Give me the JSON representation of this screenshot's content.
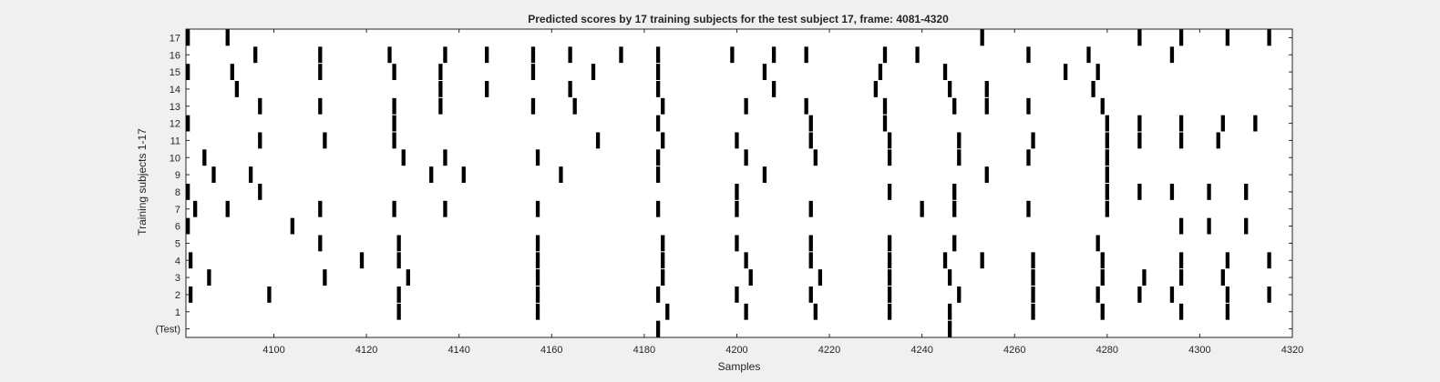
{
  "chart_data": {
    "type": "raster",
    "title": "Predicted scores by 17 training subjects for the test subject 17, frame: 4081-4320",
    "xlabel": "Samples",
    "ylabel": "Training subjects 1-17",
    "xlim": [
      4081,
      4320
    ],
    "x_ticks": [
      4100,
      4120,
      4140,
      4160,
      4180,
      4200,
      4220,
      4240,
      4260,
      4280,
      4300,
      4320
    ],
    "y_tick_labels": [
      "(Test)",
      "1",
      "2",
      "3",
      "4",
      "5",
      "6",
      "7",
      "8",
      "9",
      "10",
      "11",
      "12",
      "13",
      "14",
      "15",
      "16",
      "17"
    ],
    "grid": false,
    "colors": {
      "mark": "#000000",
      "plot_bg": "#ffffff",
      "figure_bg": "#f0f0f0",
      "text": "#262626"
    },
    "rows": [
      {
        "label": "(Test)",
        "samples": [
          4183,
          4246
        ]
      },
      {
        "label": "1",
        "samples": [
          4127,
          4157,
          4185,
          4202,
          4217,
          4233,
          4246,
          4264,
          4279,
          4296,
          4306
        ]
      },
      {
        "label": "2",
        "samples": [
          4082,
          4099,
          4127,
          4157,
          4183,
          4200,
          4216,
          4233,
          4248,
          4264,
          4278,
          4287,
          4294,
          4306,
          4315
        ]
      },
      {
        "label": "3",
        "samples": [
          4086,
          4111,
          4129,
          4157,
          4184,
          4203,
          4218,
          4233,
          4246,
          4264,
          4279,
          4288,
          4296,
          4305
        ]
      },
      {
        "label": "4",
        "samples": [
          4082,
          4119,
          4127,
          4157,
          4184,
          4202,
          4216,
          4233,
          4245,
          4253,
          4264,
          4279,
          4296,
          4306,
          4315
        ]
      },
      {
        "label": "5",
        "samples": [
          4110,
          4127,
          4157,
          4184,
          4200,
          4216,
          4233,
          4247,
          4278
        ]
      },
      {
        "label": "6",
        "samples": [
          4081,
          4104,
          4296,
          4302,
          4310
        ]
      },
      {
        "label": "7",
        "samples": [
          4083,
          4090,
          4110,
          4126,
          4137,
          4157,
          4183,
          4200,
          4216,
          4240,
          4247,
          4263,
          4280
        ]
      },
      {
        "label": "8",
        "samples": [
          4081,
          4097,
          4200,
          4233,
          4247,
          4280,
          4287,
          4294,
          4302,
          4310
        ]
      },
      {
        "label": "9",
        "samples": [
          4087,
          4095,
          4134,
          4141,
          4162,
          4183,
          4206,
          4254,
          4280
        ]
      },
      {
        "label": "10",
        "samples": [
          4085,
          4128,
          4137,
          4157,
          4183,
          4202,
          4217,
          4233,
          4248,
          4263,
          4280
        ]
      },
      {
        "label": "11",
        "samples": [
          4097,
          4111,
          4126,
          4170,
          4184,
          4200,
          4216,
          4233,
          4248,
          4264,
          4280,
          4287,
          4296,
          4304
        ]
      },
      {
        "label": "12",
        "samples": [
          4081,
          4126,
          4183,
          4216,
          4232,
          4280,
          4287,
          4296,
          4305,
          4312
        ]
      },
      {
        "label": "13",
        "samples": [
          4097,
          4110,
          4126,
          4136,
          4156,
          4165,
          4184,
          4202,
          4215,
          4232,
          4247,
          4254,
          4263,
          4279
        ]
      },
      {
        "label": "14",
        "samples": [
          4092,
          4136,
          4146,
          4164,
          4183,
          4208,
          4230,
          4246,
          4254,
          4277
        ]
      },
      {
        "label": "15",
        "samples": [
          4081,
          4091,
          4110,
          4126,
          4136,
          4156,
          4169,
          4183,
          4206,
          4231,
          4245,
          4271,
          4278
        ]
      },
      {
        "label": "16",
        "samples": [
          4096,
          4110,
          4125,
          4137,
          4146,
          4156,
          4164,
          4175,
          4183,
          4199,
          4208,
          4215,
          4232,
          4239,
          4263,
          4276,
          4294
        ]
      },
      {
        "label": "17",
        "samples": [
          4081,
          4090,
          4253,
          4287,
          4296,
          4306,
          4315
        ]
      }
    ]
  }
}
